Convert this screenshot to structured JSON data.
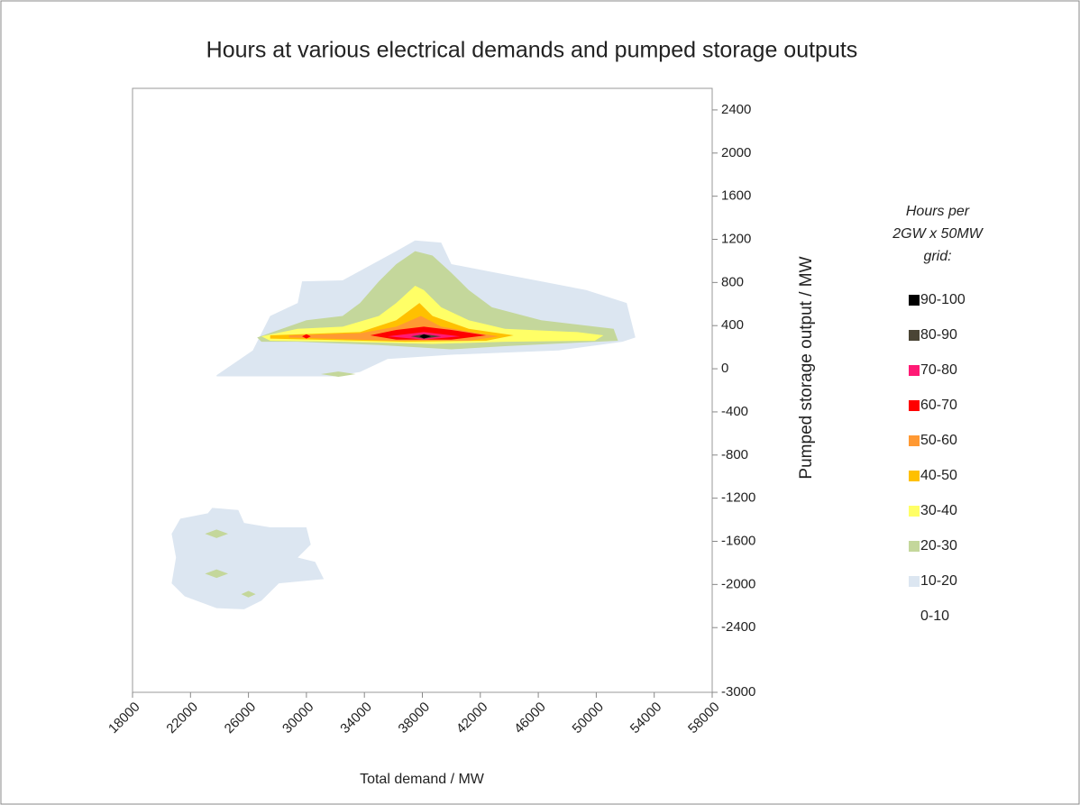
{
  "chart_data": {
    "type": "contour",
    "title": "Hours at various electrical demands and pumped storage outputs",
    "x_label": "Total demand / MW",
    "y_label": "Pumped storage output / MW",
    "xlim": [
      18000,
      58000
    ],
    "xticks": [
      18000,
      22000,
      26000,
      30000,
      34000,
      38000,
      42000,
      46000,
      50000,
      54000,
      58000
    ],
    "ylim": [
      -3000,
      2600
    ],
    "yticks": [
      2400,
      2000,
      1600,
      1200,
      800,
      400,
      0,
      -400,
      -800,
      -1200,
      -1600,
      -2000,
      -2400,
      -3000
    ],
    "legend_title": [
      "Hours per",
      "2GW x 50MW",
      "grid:"
    ],
    "levels": [
      {
        "name": "90-100",
        "color": "#000000",
        "regions": [
          {
            "x": [
              37800,
              38100,
              38600,
              38100
            ],
            "y": [
              300,
              320,
              300,
              280
            ]
          }
        ]
      },
      {
        "name": "80-90",
        "color": "#4a4535",
        "regions": [
          {
            "x": [
              37200,
              38100,
              39300,
              38100
            ],
            "y": [
              300,
              320,
              300,
              280
            ]
          }
        ]
      },
      {
        "name": "70-80",
        "color": "#ff1a75",
        "regions": [
          {
            "x": [
              35600,
              38100,
              40600,
              38100
            ],
            "y": [
              300,
              340,
              300,
              270
            ]
          }
        ]
      },
      {
        "name": "60-70",
        "color": "#ff0000",
        "regions": [
          {
            "x": [
              34400,
              36200,
              38100,
              40000,
              42400,
              40000,
              36200
            ],
            "y": [
              310,
              360,
              390,
              360,
              310,
              270,
              270
            ]
          },
          {
            "x": [
              29700,
              30000,
              30300,
              30000
            ],
            "y": [
              300,
              320,
              300,
              280
            ]
          }
        ]
      },
      {
        "name": "50-60",
        "color": "#ff9933",
        "regions": [
          {
            "x": [
              28800,
              33700,
              36200,
              37900,
              39300,
              41800,
              43300,
              41200,
              36200,
              28800
            ],
            "y": [
              310,
              330,
              390,
              490,
              390,
              330,
              300,
              260,
              260,
              290
            ]
          }
        ]
      },
      {
        "name": "40-50",
        "color": "#ffc000",
        "regions": [
          {
            "x": [
              27500,
              33700,
              36200,
              37800,
              38700,
              41200,
              44300,
              42400,
              36800,
              27500
            ],
            "y": [
              310,
              340,
              450,
              610,
              490,
              370,
              310,
              260,
              250,
              280
            ]
          }
        ]
      },
      {
        "name": "30-40",
        "color": "#ffff66",
        "regions": [
          {
            "x": [
              26900,
              29400,
              32500,
              35000,
              36200,
              37500,
              38100,
              39300,
              41200,
              43700,
              48700,
              50500,
              49900,
              43700,
              38700,
              32500,
              27500
            ],
            "y": [
              300,
              370,
              390,
              490,
              610,
              770,
              730,
              570,
              450,
              370,
              340,
              310,
              260,
              250,
              230,
              250,
              260
            ]
          }
        ]
      },
      {
        "name": "20-30",
        "color": "#c4d79b",
        "regions": [
          {
            "x": [
              26600,
              30000,
              32500,
              33700,
              35000,
              36200,
              37500,
              38700,
              40000,
              41200,
              42800,
              46200,
              51200,
              51500,
              43700,
              40000,
              35000,
              29400,
              26900
            ],
            "y": [
              290,
              450,
              490,
              610,
              810,
              970,
              1090,
              1050,
              890,
              730,
              570,
              450,
              370,
              260,
              210,
              180,
              220,
              250,
              250
            ]
          },
          {
            "x": [
              31000,
              32200,
              33400,
              32200
            ],
            "y": [
              -50,
              -25,
              -50,
              -75
            ]
          },
          {
            "x": [
              23000,
              23800,
              24600,
              23800
            ],
            "y": [
              -1530,
              -1490,
              -1530,
              -1570
            ]
          },
          {
            "x": [
              23000,
              23800,
              24600,
              23800
            ],
            "y": [
              -1900,
              -1860,
              -1900,
              -1940
            ]
          },
          {
            "x": [
              25500,
              26000,
              26500,
              26000
            ],
            "y": [
              -2090,
              -2060,
              -2090,
              -2120
            ]
          }
        ]
      },
      {
        "name": "10-20",
        "color": "#dce6f1",
        "regions": [
          {
            "x": [
              23800,
              26300,
              27500,
              29400,
              29700,
              32500,
              36200,
              37500,
              39300,
              40000,
              43100,
              46200,
              49300,
              52100,
              52700,
              51800,
              47400,
              40000,
              35600,
              33700,
              31900,
              23800
            ],
            "y": [
              -60,
              170,
              490,
              610,
              810,
              820,
              1090,
              1190,
              1170,
              970,
              890,
              810,
              730,
              610,
              290,
              250,
              170,
              130,
              90,
              -30,
              -70,
              -70
            ]
          },
          {
            "x": [
              20700,
              21300,
              23200,
              23500,
              25300,
              25700,
              27500,
              30000,
              30300,
              29400,
              30600,
              31200,
              28100,
              26900,
              25700,
              23800,
              21600,
              20700,
              21000
            ],
            "y": [
              -1530,
              -1390,
              -1340,
              -1290,
              -1310,
              -1430,
              -1470,
              -1470,
              -1630,
              -1750,
              -1790,
              -1950,
              -1990,
              -2150,
              -2230,
              -2220,
              -2110,
              -1990,
              -1750
            ]
          }
        ]
      },
      {
        "name": "0-10",
        "color": "#ffffff",
        "regions": []
      }
    ]
  }
}
